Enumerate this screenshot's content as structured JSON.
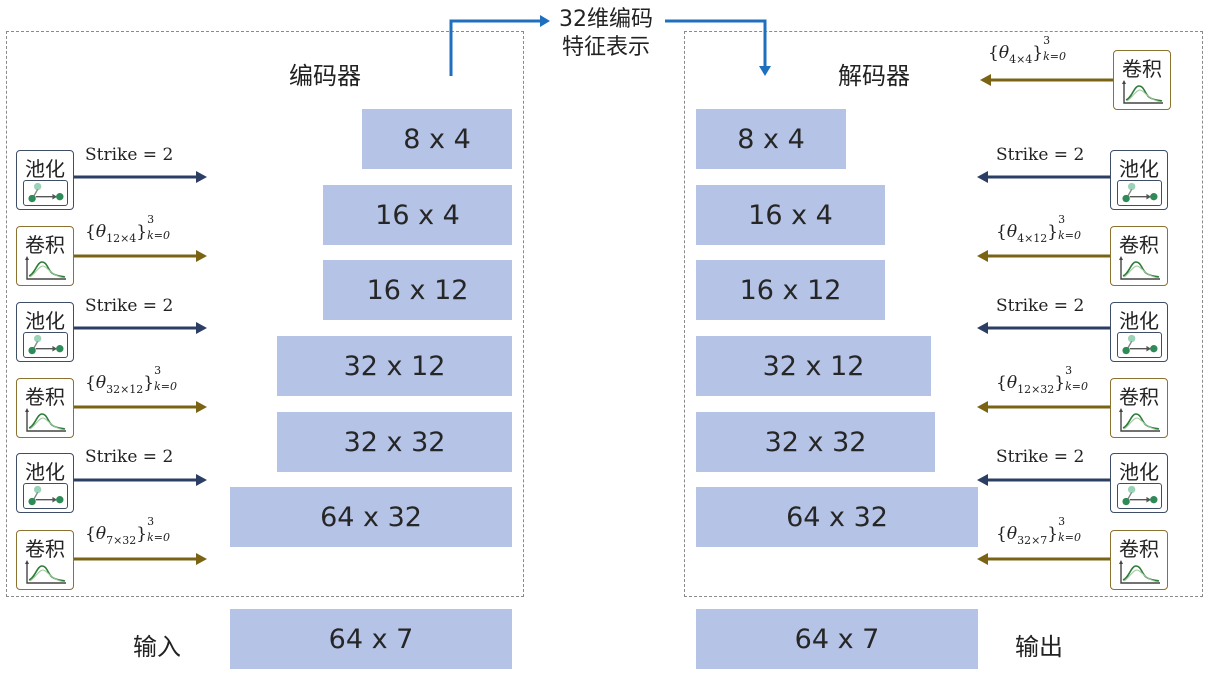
{
  "feature_label": [
    "32维编码",
    "特征表示"
  ],
  "encoder": {
    "title": "编码器",
    "blocks": [
      "8 x 4",
      "16 x 4",
      "16 x 12",
      "32 x 12",
      "32 x 32",
      "64 x 32"
    ],
    "ops": [
      {
        "type": "pool",
        "label": "池化",
        "param": "Strike = 2"
      },
      {
        "type": "conv",
        "label": "卷积",
        "param_base": "θ",
        "param_sub": "12×4",
        "param_sup": "3",
        "param_range": "k=0"
      },
      {
        "type": "pool",
        "label": "池化",
        "param": "Strike = 2"
      },
      {
        "type": "conv",
        "label": "卷积",
        "param_base": "θ",
        "param_sub": "32×12",
        "param_sup": "3",
        "param_range": "k=0"
      },
      {
        "type": "pool",
        "label": "池化",
        "param": "Strike = 2"
      },
      {
        "type": "conv",
        "label": "卷积",
        "param_base": "θ",
        "param_sub": "7×32",
        "param_sup": "3",
        "param_range": "k=0"
      }
    ]
  },
  "decoder": {
    "title": "解码器",
    "blocks": [
      "8 x 4",
      "16 x 4",
      "16 x 12",
      "32 x 12",
      "32 x 32",
      "64 x 32"
    ],
    "ops": [
      {
        "type": "conv",
        "label": "卷积",
        "param_base": "θ",
        "param_sub": "4×4",
        "param_sup": "3",
        "param_range": "k=0"
      },
      {
        "type": "pool",
        "label": "池化",
        "param": "Strike = 2"
      },
      {
        "type": "conv",
        "label": "卷积",
        "param_base": "θ",
        "param_sub": "4×12",
        "param_sup": "3",
        "param_range": "k=0"
      },
      {
        "type": "pool",
        "label": "池化",
        "param": "Strike = 2"
      },
      {
        "type": "conv",
        "label": "卷积",
        "param_base": "θ",
        "param_sub": "12×32",
        "param_sup": "3",
        "param_range": "k=0"
      },
      {
        "type": "pool",
        "label": "池化",
        "param": "Strike = 2"
      },
      {
        "type": "conv",
        "label": "卷积",
        "param_base": "θ",
        "param_sub": "32×7",
        "param_sup": "3",
        "param_range": "k=0"
      }
    ]
  },
  "input": {
    "label": "输入",
    "block": "64 x 7"
  },
  "output": {
    "label": "输出",
    "block": "64 x 7"
  },
  "colors": {
    "block": "#b4c3e6",
    "pool_arrow": "#2c3e63",
    "conv_arrow": "#7a6414",
    "feature_arrow": "#1f6fbf",
    "dash": "#8a8a8a"
  },
  "icons": {
    "pool": "pool-nodes-icon",
    "conv": "conv-curve-icon"
  }
}
